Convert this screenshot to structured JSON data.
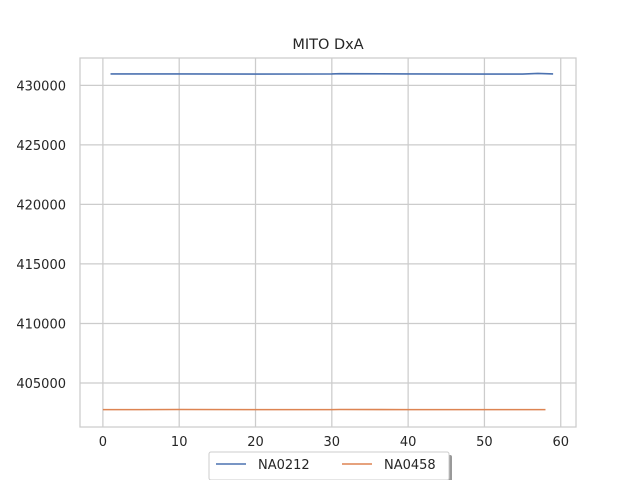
{
  "chart_data": {
    "type": "line",
    "title": "MITO DxA",
    "xlabel": "",
    "ylabel": "",
    "xlim": [
      -3,
      62
    ],
    "ylim": [
      401300,
      432300
    ],
    "xticks": [
      0,
      10,
      20,
      30,
      40,
      50,
      60
    ],
    "yticks": [
      405000,
      410000,
      415000,
      420000,
      425000,
      430000
    ],
    "grid": true,
    "legend": "bottom-center",
    "series": [
      {
        "name": "NA0212",
        "color": "#4c72b0",
        "x": [
          1,
          10,
          20,
          30,
          31,
          40,
          50,
          55,
          57,
          59
        ],
        "y": [
          430960,
          430960,
          430950,
          430960,
          430980,
          430960,
          430950,
          430950,
          431000,
          430960
        ]
      },
      {
        "name": "NA0458",
        "color": "#dd8452",
        "x": [
          0,
          5,
          10,
          20,
          30,
          31,
          40,
          50,
          58
        ],
        "y": [
          402760,
          402760,
          402770,
          402760,
          402760,
          402770,
          402760,
          402760,
          402760
        ]
      }
    ]
  }
}
